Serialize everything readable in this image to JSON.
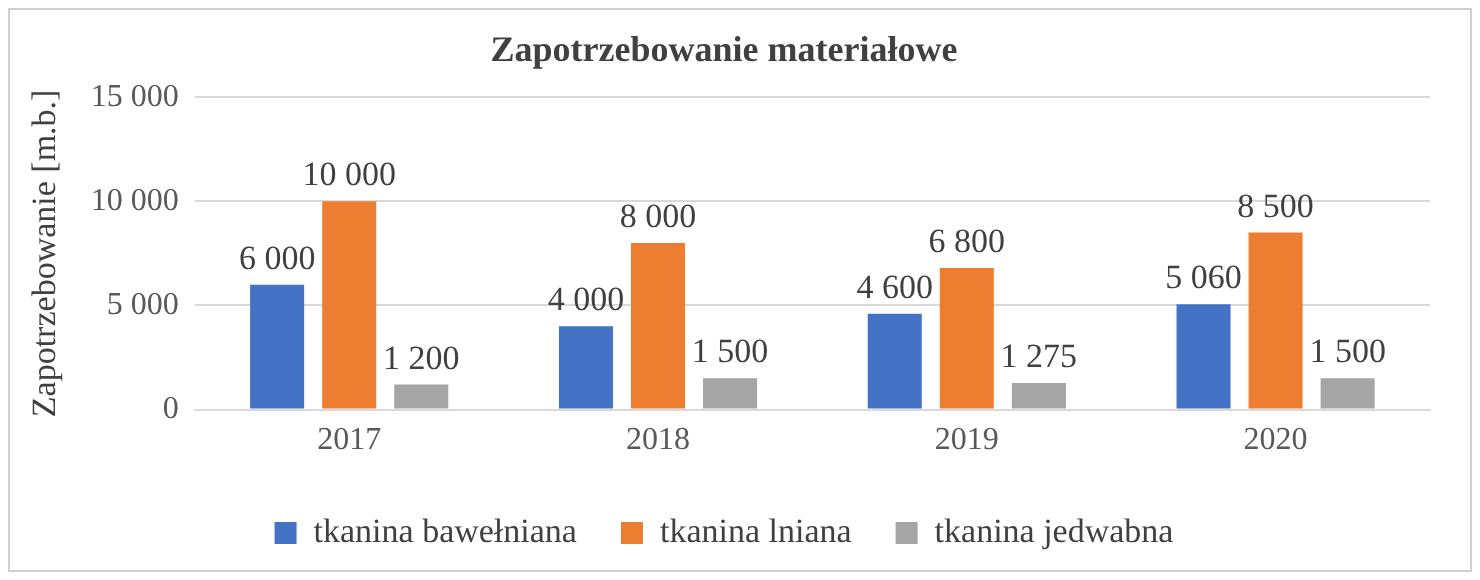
{
  "chart_data": {
    "type": "bar",
    "title": "Zapotrzebowanie materiałowe",
    "ylabel": "Zapotrzebowanie [m.b.]",
    "categories": [
      "2017",
      "2018",
      "2019",
      "2020"
    ],
    "series": [
      {
        "name": "tkanina bawełniana",
        "color": "#4472c4",
        "values": [
          6000,
          4000,
          4600,
          5060
        ],
        "value_labels": [
          "6 000",
          "4 000",
          "4 600",
          "5 060"
        ]
      },
      {
        "name": "tkanina lniana",
        "color": "#ed7d31",
        "values": [
          10000,
          8000,
          6800,
          8500
        ],
        "value_labels": [
          "10 000",
          "8 000",
          "6 800",
          "8 500"
        ]
      },
      {
        "name": "tkanina jedwabna",
        "color": "#a5a5a5",
        "values": [
          1200,
          1500,
          1275,
          1500
        ],
        "value_labels": [
          "1 200",
          "1 500",
          "1 275",
          "1 500"
        ]
      }
    ],
    "ylim": [
      0,
      15000
    ],
    "yticks": [
      {
        "value": 0,
        "label": "0"
      },
      {
        "value": 5000,
        "label": "5 000"
      },
      {
        "value": 10000,
        "label": "10 000"
      },
      {
        "value": 15000,
        "label": "15 000"
      }
    ],
    "grid": "y",
    "legend": "bottom"
  }
}
